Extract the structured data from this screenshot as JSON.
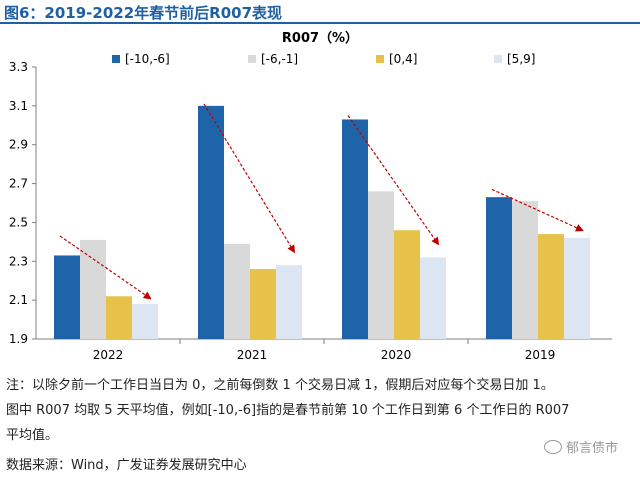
{
  "figure": {
    "title": "图6：2019-2022年春节前后R007表现"
  },
  "chart_data": {
    "type": "bar",
    "title": "R007（%）",
    "categories": [
      "2022",
      "2021",
      "2020",
      "2019"
    ],
    "series": [
      {
        "name": "[-10,-6]",
        "color": "#1f64a8",
        "values": [
          2.33,
          3.1,
          3.03,
          2.63
        ]
      },
      {
        "name": "[-6,-1]",
        "color": "#d9d9d9",
        "values": [
          2.41,
          2.39,
          2.66,
          2.61
        ]
      },
      {
        "name": "[0,4]",
        "color": "#e6c24a",
        "values": [
          2.12,
          2.26,
          2.46,
          2.44
        ]
      },
      {
        "name": "[5,9]",
        "color": "#dce6f2",
        "values": [
          2.08,
          2.28,
          2.32,
          2.42
        ]
      }
    ],
    "ylim": [
      1.9,
      3.3
    ],
    "yticks": [
      "3.3",
      "3.1",
      "2.9",
      "2.7",
      "2.5",
      "2.3",
      "2.1",
      "1.9"
    ],
    "ytick_values": [
      3.3,
      3.1,
      2.9,
      2.7,
      2.5,
      2.3,
      2.1,
      1.9
    ],
    "xlabel": "",
    "ylabel": "",
    "legend_position": "top",
    "trend_arrows": [
      {
        "category": "2022",
        "from_value": 2.43,
        "to_value": 2.11
      },
      {
        "category": "2021",
        "from_value": 3.11,
        "to_value": 2.35
      },
      {
        "category": "2020",
        "from_value": 3.05,
        "to_value": 2.39
      },
      {
        "category": "2019",
        "from_value": 2.67,
        "to_value": 2.46
      }
    ],
    "arrow_color": "#c00000"
  },
  "notes": {
    "line1": "注：以除夕前一个工作日当日为 0，之前每倒数 1 个交易日减 1，假期后对应每个交易日加 1。",
    "line2": "图中 R007 均取 5 天平均值，例如[-10,-6]指的是春节前第 10 个工作日到第 6 个工作日的 R007",
    "line3": "平均值。",
    "source": "数据来源：Wind，广发证券发展研究中心"
  },
  "watermark": {
    "text": "郁言债市",
    "icon": "wechat-icon"
  }
}
